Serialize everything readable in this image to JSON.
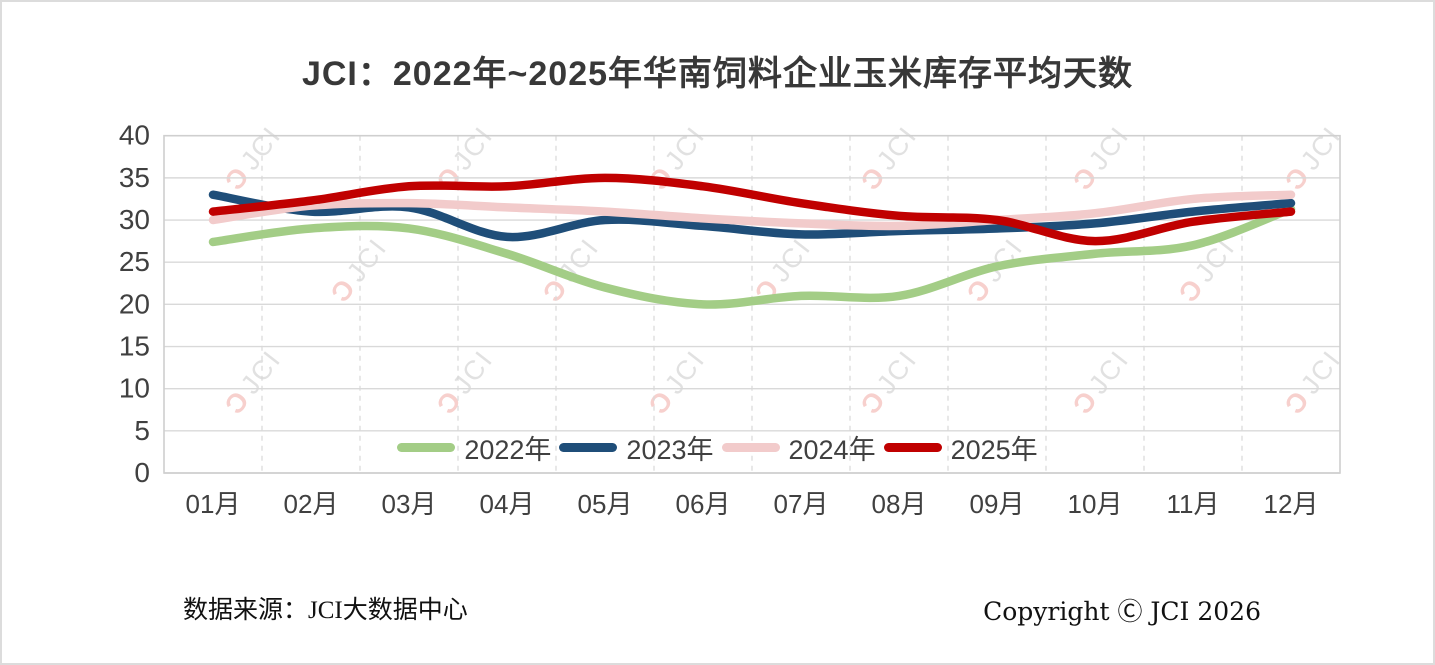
{
  "title": "JCI：2022年~2025年华南饲料企业玉米库存平均天数",
  "footer": {
    "source": "数据来源：JCI大数据中心",
    "copyright": "Copyright Ⓒ JCI 2026"
  },
  "watermark": {
    "hook": "Ɔ",
    "text": "JCI"
  },
  "colors": {
    "axis_text": "#404040",
    "grid": "#d9d9d9",
    "plot_border": "#cfcfcf",
    "watermark_hook": "#f0a9a4",
    "watermark_text": "#c9c9c9"
  },
  "chart_data": {
    "type": "line",
    "title": "JCI：2022年~2025年华南饲料企业玉米库存平均天数",
    "categories": [
      "01月",
      "02月",
      "03月",
      "04月",
      "05月",
      "06月",
      "07月",
      "08月",
      "09月",
      "10月",
      "11月",
      "12月"
    ],
    "series": [
      {
        "name": "2022年",
        "color": "#a3cd86",
        "values": [
          27.4,
          29,
          29,
          26,
          22,
          20,
          21,
          21,
          24.5,
          26,
          27,
          31.3
        ]
      },
      {
        "name": "2023年",
        "color": "#1f4e79",
        "values": [
          33,
          31,
          31.5,
          28,
          30,
          29.3,
          28.3,
          28.7,
          29,
          29.6,
          31,
          32
        ]
      },
      {
        "name": "2024年",
        "color": "#f2cbcb",
        "values": [
          30,
          31.7,
          32,
          31.5,
          31,
          30.2,
          29.6,
          29.3,
          30,
          30.8,
          32.5,
          33
        ]
      },
      {
        "name": "2025年",
        "color": "#c00000",
        "values": [
          31,
          32.3,
          34,
          34,
          35,
          34,
          32,
          30.5,
          30,
          27.5,
          29.8,
          31
        ]
      }
    ],
    "xlabel": "",
    "ylabel": "",
    "ylim": [
      0,
      40
    ],
    "ystep": 5,
    "grid": true,
    "line_smooth": true,
    "legend_position": "bottom-inside"
  }
}
